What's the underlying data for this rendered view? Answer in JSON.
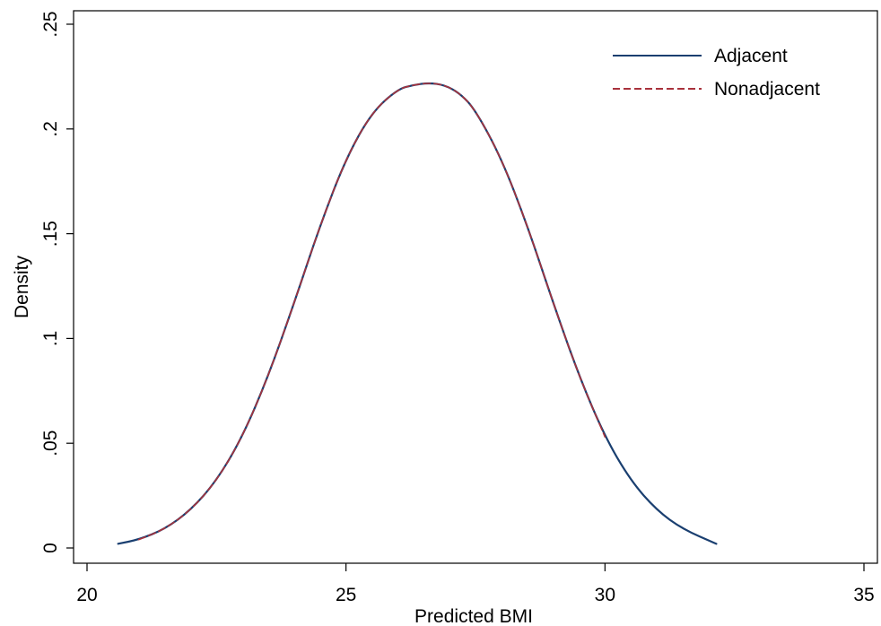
{
  "chart_data": {
    "type": "line",
    "title": "",
    "xlabel": "Predicted BMI",
    "ylabel": "Density",
    "xlim": [
      20,
      35
    ],
    "ylim": [
      0,
      0.25
    ],
    "x_ticks": [
      20,
      25,
      30,
      35
    ],
    "x_tick_labels": [
      "20",
      "25",
      "30",
      "35"
    ],
    "y_ticks": [
      0,
      0.05,
      0.1,
      0.15,
      0.2,
      0.25
    ],
    "y_tick_labels": [
      "0",
      ".05",
      ".1",
      ".15",
      ".2",
      ".25"
    ],
    "grid": false,
    "legend_position": "top-right",
    "series": [
      {
        "name": "Adjacent",
        "color": "#1a3f70",
        "style": "solid",
        "x": [
          20.6,
          21.0,
          21.5,
          22.0,
          22.5,
          23.0,
          23.5,
          24.0,
          24.5,
          25.0,
          25.5,
          26.0,
          26.3,
          26.6,
          26.9,
          27.2,
          27.5,
          28.0,
          28.5,
          29.0,
          29.5,
          30.0,
          30.5,
          31.0,
          31.5,
          32.15
        ],
        "y": [
          0.002,
          0.004,
          0.009,
          0.018,
          0.032,
          0.053,
          0.082,
          0.117,
          0.154,
          0.186,
          0.208,
          0.219,
          0.221,
          0.222,
          0.221,
          0.217,
          0.209,
          0.186,
          0.154,
          0.117,
          0.082,
          0.053,
          0.032,
          0.018,
          0.009,
          0.002
        ]
      },
      {
        "name": "Nonadjacent",
        "color": "#a8323c",
        "style": "dashed",
        "x": [
          21.0,
          21.5,
          22.0,
          22.5,
          23.0,
          23.5,
          24.0,
          24.5,
          25.0,
          25.5,
          26.0,
          26.3,
          26.6,
          26.9,
          27.2,
          27.5,
          28.0,
          28.5,
          29.0,
          29.5,
          30.0
        ],
        "y": [
          0.004,
          0.009,
          0.018,
          0.032,
          0.053,
          0.082,
          0.117,
          0.154,
          0.186,
          0.208,
          0.219,
          0.221,
          0.222,
          0.221,
          0.217,
          0.209,
          0.186,
          0.154,
          0.117,
          0.082,
          0.053
        ]
      }
    ]
  }
}
